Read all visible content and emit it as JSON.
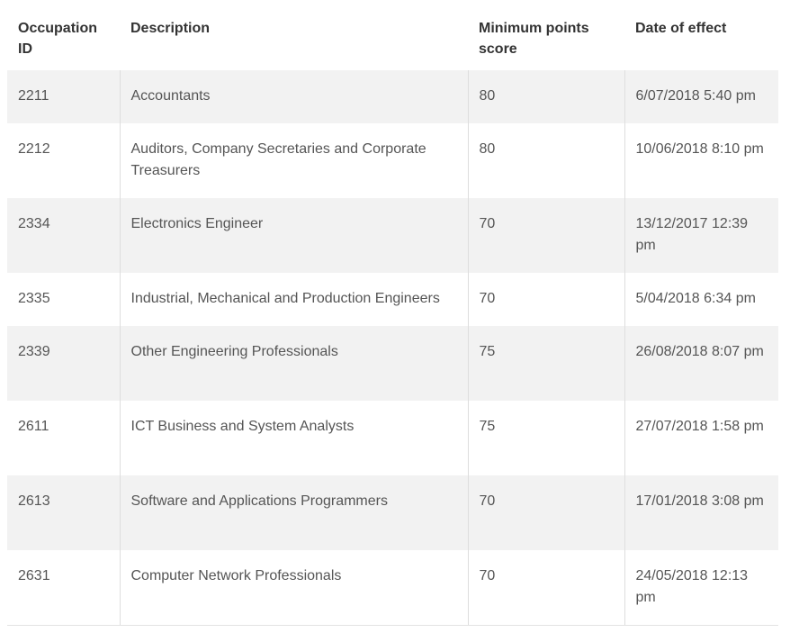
{
  "table": {
    "headers": {
      "id": "Occupation ID",
      "description": "Description",
      "min_points": "Minimum points score",
      "date": "Date of effect"
    },
    "rows": [
      {
        "id": "2211",
        "description": "Accountants",
        "min_points": "80",
        "date": "6/07/2018 5:40 pm"
      },
      {
        "id": "2212",
        "description": "Auditors, Company Secretaries and Corporate Treasurers",
        "min_points": "80",
        "date": "10/06/2018 8:10 pm"
      },
      {
        "id": "2334",
        "description": "Electronics Engineer",
        "min_points": "70",
        "date": "13/12/2017 12:39 pm"
      },
      {
        "id": "2335",
        "description": "Industrial, Mechanical and Production Engineers",
        "min_points": "70",
        "date": "5/04/2018 6:34 pm"
      },
      {
        "id": "2339",
        "description": "Other Engineering Professionals",
        "min_points": "75",
        "date": "26/08/2018 8:07 pm"
      },
      {
        "id": "2611",
        "description": "ICT Business and System Analysts",
        "min_points": "75",
        "date": "27/07/2018 1:58 pm"
      },
      {
        "id": "2613",
        "description": "Software and Applications Programmers",
        "min_points": "70",
        "date": "17/01/2018 3:08 pm"
      },
      {
        "id": "2631",
        "description": "Computer Network Professionals",
        "min_points": "70",
        "date": "24/05/2018 12:13 pm"
      }
    ]
  }
}
